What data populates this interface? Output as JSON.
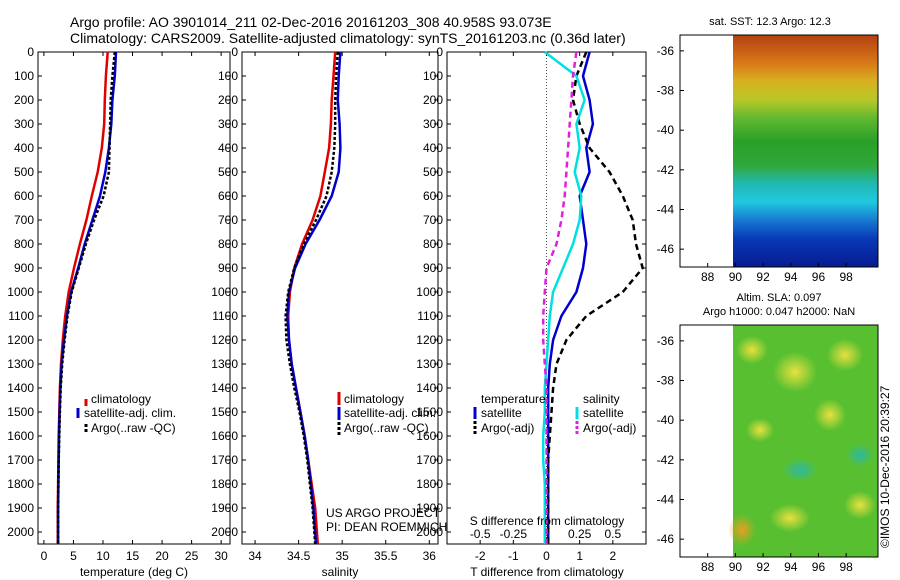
{
  "header": {
    "line1": "Argo profile: AO 3901014_211 02-Dec-2016 20161203_308 40.958S 93.073E",
    "line2": "Climatology: CARS2009. Satellite-adjusted climatology: synTS_20161203.nc (0.36d later)"
  },
  "depth_ticks": [
    "0",
    "100",
    "200",
    "300",
    "400",
    "500",
    "600",
    "700",
    "800",
    "900",
    "1000",
    "1100",
    "1200",
    "1300",
    "1400",
    "1500",
    "1600",
    "1700",
    "1800",
    "1900",
    "2000"
  ],
  "colors": {
    "climatology": "#e00000",
    "satellite": "#0000cc",
    "argo": "#000000",
    "sat_salinity": "#00e0e0",
    "argo_salinity": "#e020e0"
  },
  "legend": {
    "climatology": "climatology",
    "satellite_adj": "satellite-adj. clim.",
    "argo": "Argo(..raw -QC)",
    "temperature_head": "temperature",
    "salinity_head": "salinity",
    "satellite": "satellite",
    "argo_adj": "Argo(-adj)"
  },
  "project": {
    "line1": "US ARGO PROJECT",
    "line2": "PI: DEAN ROEMMICH"
  },
  "chart_data": [
    {
      "type": "line",
      "xlabel": "temperature (deg C)",
      "xticks": [
        "0",
        "5",
        "10",
        "15",
        "20",
        "25",
        "30"
      ],
      "xlim": [
        -1,
        31.5
      ],
      "ylim": [
        0,
        2050
      ],
      "series": [
        {
          "name": "climatology",
          "x": [
            10.8,
            10.5,
            10.3,
            10.2,
            9.8,
            9.1,
            8.1,
            7.2,
            6.1,
            5.1,
            4.2,
            3.6,
            3.2,
            2.9,
            2.7,
            2.6,
            2.5,
            2.45,
            2.4,
            2.35,
            2.35
          ],
          "y": [
            0,
            100,
            200,
            300,
            400,
            500,
            600,
            700,
            800,
            900,
            1000,
            1100,
            1200,
            1300,
            1400,
            1500,
            1600,
            1700,
            1800,
            1900,
            2050
          ]
        },
        {
          "name": "satellite-adj. clim.",
          "x": [
            12.2,
            12.0,
            11.6,
            11.4,
            11.0,
            10.4,
            9.5,
            8.2,
            6.9,
            5.8,
            4.6,
            3.9,
            3.4,
            3.0,
            2.8,
            2.65,
            2.55,
            2.5,
            2.45,
            2.4,
            2.4
          ],
          "y": [
            0,
            100,
            200,
            300,
            400,
            500,
            600,
            700,
            800,
            900,
            1000,
            1100,
            1200,
            1300,
            1400,
            1500,
            1600,
            1700,
            1800,
            1900,
            2050
          ]
        },
        {
          "name": "Argo(..raw -QC)",
          "x": [
            12.0,
            11.6,
            11.3,
            11.2,
            11.1,
            11.0,
            10.1,
            8.5,
            7.1,
            5.9,
            4.7,
            4.0,
            3.5,
            3.1,
            2.85,
            2.7,
            2.6,
            2.5,
            2.45,
            2.4,
            2.4
          ],
          "y": [
            0,
            100,
            200,
            300,
            400,
            500,
            600,
            700,
            800,
            900,
            1000,
            1100,
            1200,
            1300,
            1400,
            1500,
            1600,
            1700,
            1800,
            1900,
            2050
          ]
        }
      ]
    },
    {
      "type": "line",
      "xlabel": "salinity",
      "xticks": [
        "34",
        "34.5",
        "35",
        "35.5",
        "36"
      ],
      "xlim": [
        33.85,
        36.1
      ],
      "ylim": [
        0,
        2050
      ],
      "series": [
        {
          "name": "climatology",
          "x": [
            34.92,
            34.9,
            34.88,
            34.87,
            34.85,
            34.8,
            34.75,
            34.66,
            34.54,
            34.45,
            34.4,
            34.38,
            34.39,
            34.42,
            34.47,
            34.52,
            34.57,
            34.61,
            34.65,
            34.69,
            34.72
          ],
          "y": [
            0,
            100,
            200,
            300,
            400,
            500,
            600,
            700,
            800,
            900,
            1000,
            1100,
            1200,
            1300,
            1400,
            1500,
            1600,
            1700,
            1800,
            1900,
            2050
          ]
        },
        {
          "name": "satellite-adj. clim.",
          "x": [
            34.98,
            34.96,
            34.95,
            34.97,
            34.98,
            34.96,
            34.88,
            34.74,
            34.58,
            34.46,
            34.39,
            34.37,
            34.39,
            34.42,
            34.47,
            34.52,
            34.57,
            34.61,
            34.64,
            34.67,
            34.7
          ],
          "y": [
            0,
            100,
            200,
            300,
            400,
            500,
            600,
            700,
            800,
            900,
            1000,
            1100,
            1200,
            1300,
            1400,
            1500,
            1600,
            1700,
            1800,
            1900,
            2050
          ]
        },
        {
          "name": "Argo(..raw -QC)",
          "x": [
            34.95,
            34.93,
            34.92,
            34.92,
            34.91,
            34.88,
            34.82,
            34.7,
            34.56,
            34.45,
            34.38,
            34.35,
            34.36,
            34.4,
            34.45,
            34.51,
            34.56,
            34.6,
            34.63,
            34.66,
            34.69
          ],
          "y": [
            0,
            100,
            200,
            300,
            400,
            500,
            600,
            700,
            800,
            900,
            1000,
            1100,
            1200,
            1300,
            1400,
            1500,
            1600,
            1700,
            1800,
            1900,
            2050
          ]
        }
      ]
    },
    {
      "type": "line",
      "xlabel": "T difference from climatology",
      "xticks": [
        "-2",
        "-1",
        "0",
        "1",
        "2"
      ],
      "xticks_s": [
        "-0.5",
        "-0.25",
        "0",
        "0.25",
        "0.5"
      ],
      "s_axis_label": "S difference from climatology",
      "xlim": [
        -3,
        3
      ],
      "ylim": [
        0,
        2050
      ],
      "series": [
        {
          "name": "temperature satellite",
          "x": [
            1.3,
            1.1,
            1.3,
            1.4,
            1.2,
            1.3,
            1.0,
            1.1,
            1.2,
            1.1,
            0.9,
            0.45,
            0.2,
            0.1,
            0.05,
            0.05,
            0.05,
            0.05,
            0.05,
            0.05,
            0.05
          ],
          "y": [
            0,
            100,
            200,
            300,
            400,
            500,
            600,
            700,
            800,
            900,
            1000,
            1100,
            1200,
            1300,
            1400,
            1500,
            1600,
            1700,
            1800,
            1900,
            2050
          ]
        },
        {
          "name": "temperature Argo(-adj)",
          "x": [
            1.2,
            0.9,
            0.8,
            1.0,
            1.3,
            1.9,
            2.3,
            2.6,
            2.7,
            2.9,
            2.3,
            1.2,
            0.6,
            0.3,
            0.2,
            0.15,
            0.1,
            0.05,
            0.05,
            0.05,
            0.05
          ],
          "y": [
            0,
            100,
            200,
            300,
            400,
            500,
            600,
            700,
            800,
            900,
            1000,
            1100,
            1200,
            1300,
            1400,
            1500,
            1600,
            1700,
            1800,
            1900,
            2050
          ]
        },
        {
          "name": "salinity satellite",
          "x": [
            -0.05,
            0.9,
            1.15,
            0.9,
            1.0,
            0.85,
            1.05,
            1.0,
            0.8,
            0.5,
            0.2,
            0.1,
            0.05,
            0.0,
            -0.05,
            -0.05,
            -0.1,
            -0.1,
            -0.05,
            -0.05,
            -0.05
          ],
          "y": [
            0,
            100,
            200,
            300,
            400,
            500,
            600,
            700,
            800,
            900,
            1000,
            1100,
            1200,
            1300,
            1400,
            1500,
            1600,
            1700,
            1800,
            1900,
            2050
          ]
        },
        {
          "name": "salinity Argo(-adj)",
          "x": [
            0.9,
            0.8,
            0.75,
            0.7,
            0.65,
            0.6,
            0.55,
            0.45,
            0.3,
            0.0,
            -0.05,
            -0.1,
            -0.1,
            -0.05,
            0.0,
            0.0,
            0.0,
            0.0,
            0.0,
            0.0,
            0.0
          ],
          "y": [
            0,
            100,
            200,
            300,
            400,
            500,
            600,
            700,
            800,
            900,
            1000,
            1100,
            1200,
            1300,
            1400,
            1500,
            1600,
            1700,
            1800,
            1900,
            2050
          ]
        }
      ]
    },
    {
      "type": "heatmap",
      "title": "sat. SST: 12.3 Argo: 12.3",
      "xticks": [
        "88",
        "90",
        "92",
        "94",
        "96",
        "98"
      ],
      "yticks": [
        "-36",
        "-38",
        "-40",
        "-42",
        "-44",
        "-46"
      ],
      "xlim": [
        86,
        100.3
      ],
      "ylim": [
        -46.9,
        -35.2
      ]
    },
    {
      "type": "heatmap",
      "title": "Altim. SLA: 0.097",
      "subtitle": "Argo h1000: 0.047 h2000: NaN",
      "xticks": [
        "88",
        "90",
        "92",
        "94",
        "96",
        "98"
      ],
      "yticks": [
        "-36",
        "-38",
        "-40",
        "-42",
        "-44",
        "-46"
      ],
      "xlim": [
        86,
        100.3
      ],
      "ylim": [
        -46.9,
        -35.2
      ]
    }
  ],
  "stamp": "©IMOS 10-Dec-2016 20:39:27"
}
